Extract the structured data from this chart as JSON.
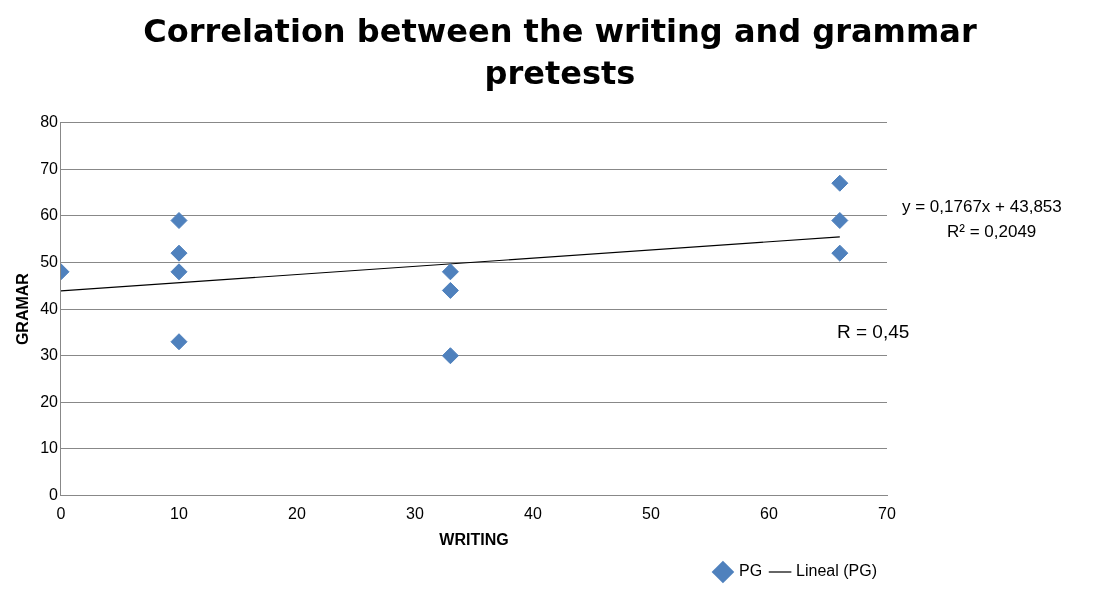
{
  "chart_data": {
    "type": "scatter",
    "title": "Correlation between the writing and grammar pretests",
    "xlabel": "WRITING",
    "ylabel": "GRAMAR",
    "xlim": [
      0,
      70
    ],
    "xticks": [
      0,
      10,
      20,
      30,
      40,
      50,
      60,
      70
    ],
    "ylim": [
      0,
      80
    ],
    "yticks": [
      0,
      10,
      20,
      30,
      40,
      50,
      60,
      70,
      80
    ],
    "grid": "y",
    "legend": "bottom right",
    "series": [
      {
        "name": "PG",
        "marker": "diamond",
        "color": "#4f81bd",
        "x": [
          0,
          10,
          10,
          10,
          10,
          33,
          33,
          33,
          66,
          66,
          66
        ],
        "values": [
          48,
          59,
          52,
          48,
          33,
          48,
          44,
          30,
          67,
          59,
          52
        ]
      },
      {
        "name": "Lineal (PG)",
        "type": "line",
        "marker": "none",
        "color": "#000000",
        "x": [
          0,
          66
        ],
        "values": [
          43.9,
          55.5
        ]
      }
    ],
    "annotations": [
      "y = 0,1767x + 43,853",
      "R² = 0,2049",
      "R = 0,45"
    ]
  }
}
